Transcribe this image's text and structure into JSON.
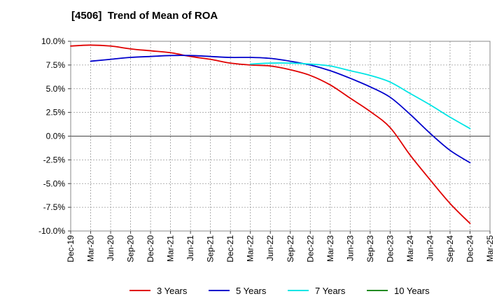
{
  "chart_data": {
    "type": "line",
    "title": "[4506]  Trend of Mean of ROA",
    "xlabel": "",
    "ylabel": "",
    "ylim": [
      -10,
      10
    ],
    "y_ticks": [
      10,
      7.5,
      5,
      2.5,
      0,
      -2.5,
      -5,
      -7.5,
      -10
    ],
    "y_tick_labels": [
      "10.0%",
      "7.5%",
      "5.0%",
      "2.5%",
      "0.0%",
      "-2.5%",
      "-5.0%",
      "-7.5%",
      "-10.0%"
    ],
    "x_tick_labels": [
      "Dec-19",
      "Mar-20",
      "Jun-20",
      "Sep-20",
      "Dec-20",
      "Mar-21",
      "Jun-21",
      "Sep-21",
      "Dec-21",
      "Mar-22",
      "Jun-22",
      "Sep-22",
      "Dec-22",
      "Mar-23",
      "Jun-23",
      "Sep-23",
      "Dec-23",
      "Mar-24",
      "Jun-24",
      "Sep-24",
      "Dec-24",
      "Mar-25"
    ],
    "grid": true,
    "legend_position": "bottom",
    "series": [
      {
        "name": "3 Years",
        "color": "#e00000",
        "start_index": 0,
        "values": [
          9.5,
          9.6,
          9.5,
          9.2,
          9.0,
          8.8,
          8.4,
          8.1,
          7.7,
          7.5,
          7.4,
          7.0,
          6.4,
          5.4,
          4.0,
          2.6,
          0.9,
          -2.0,
          -4.6,
          -7.1,
          -9.2
        ]
      },
      {
        "name": "5 Years",
        "color": "#0000cc",
        "start_index": 1,
        "values": [
          7.9,
          8.1,
          8.3,
          8.4,
          8.5,
          8.5,
          8.4,
          8.3,
          8.3,
          8.2,
          7.9,
          7.5,
          6.9,
          6.1,
          5.2,
          4.1,
          2.3,
          0.3,
          -1.5,
          -2.8
        ]
      },
      {
        "name": "7 Years",
        "color": "#00e5e5",
        "start_index": 9,
        "values": [
          7.6,
          7.7,
          7.7,
          7.6,
          7.4,
          6.9,
          6.4,
          5.7,
          4.5,
          3.3,
          2.0,
          0.8
        ]
      },
      {
        "name": "10 Years",
        "color": "#228b22",
        "start_index": 0,
        "values": []
      }
    ]
  }
}
